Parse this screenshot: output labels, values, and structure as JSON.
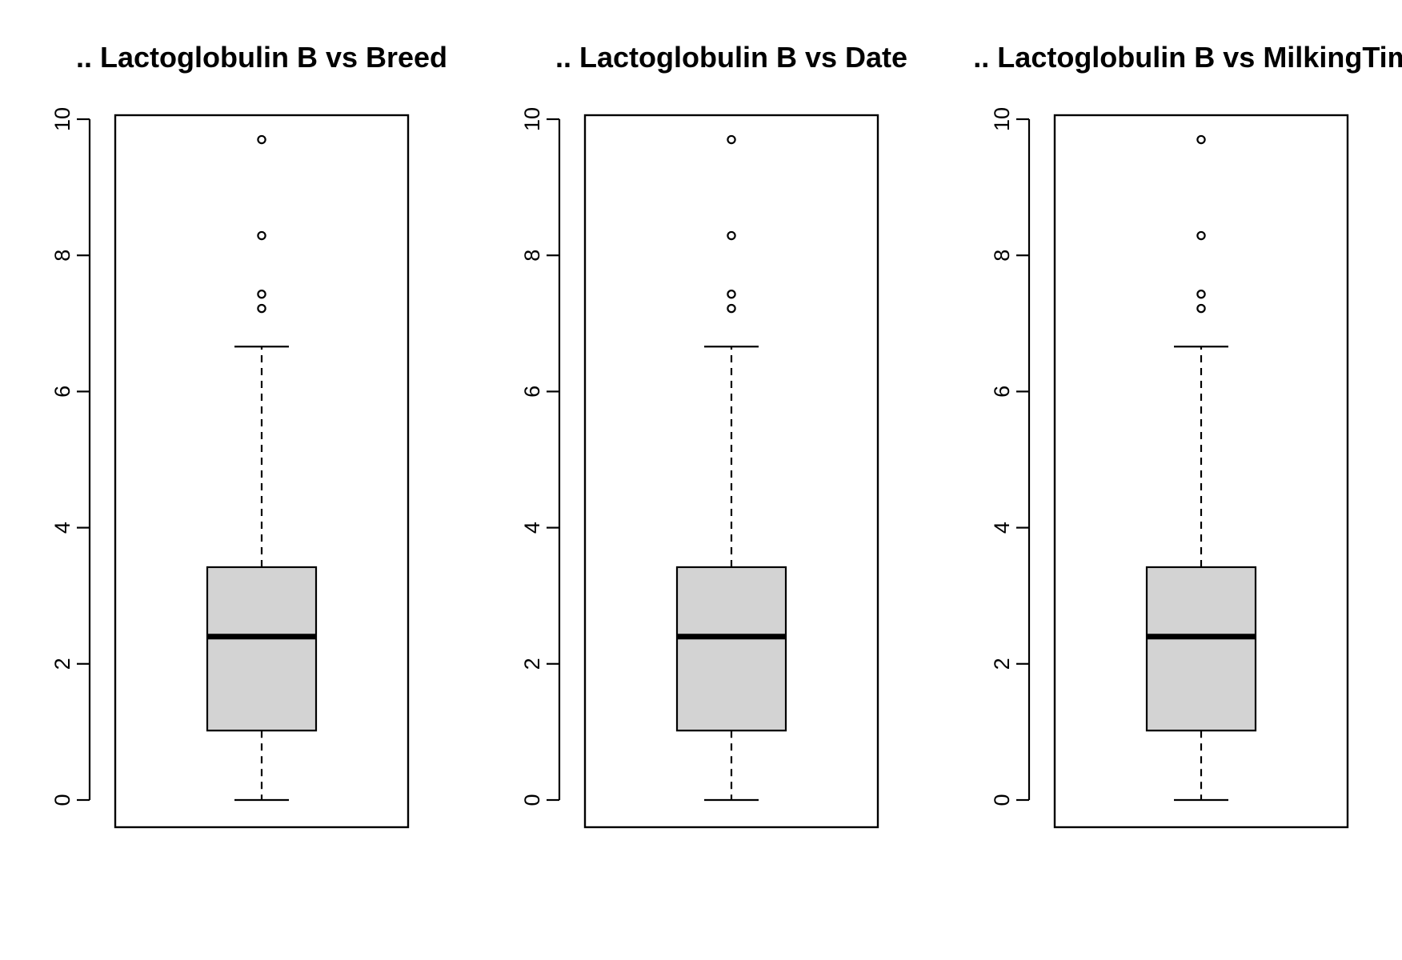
{
  "chart_data": [
    {
      "type": "box",
      "title": ".. Lactoglobulin B vs Breed",
      "xlabel": "",
      "ylabel": "",
      "ylim": [
        0,
        10
      ],
      "yticks": [
        0,
        2,
        4,
        6,
        8,
        10
      ],
      "grid": false,
      "box": {
        "min": 0,
        "q1": 1.02,
        "median": 2.4,
        "q3": 3.42,
        "max": 6.66,
        "outliers": [
          7.22,
          7.43,
          8.29,
          9.7
        ]
      },
      "colors": {
        "fill": "#d3d3d3",
        "stroke": "#000000"
      }
    },
    {
      "type": "box",
      "title": ".. Lactoglobulin B vs Date",
      "xlabel": "",
      "ylabel": "",
      "ylim": [
        0,
        10
      ],
      "yticks": [
        0,
        2,
        4,
        6,
        8,
        10
      ],
      "grid": false,
      "box": {
        "min": 0,
        "q1": 1.02,
        "median": 2.4,
        "q3": 3.42,
        "max": 6.66,
        "outliers": [
          7.22,
          7.43,
          8.29,
          9.7
        ]
      },
      "colors": {
        "fill": "#d3d3d3",
        "stroke": "#000000"
      }
    },
    {
      "type": "box",
      "title": ".. Lactoglobulin B vs MilkingTime",
      "xlabel": "",
      "ylabel": "",
      "ylim": [
        0,
        10
      ],
      "yticks": [
        0,
        2,
        4,
        6,
        8,
        10
      ],
      "grid": false,
      "box": {
        "min": 0,
        "q1": 1.02,
        "median": 2.4,
        "q3": 3.42,
        "max": 6.66,
        "outliers": [
          7.22,
          7.43,
          8.29,
          9.7
        ]
      },
      "colors": {
        "fill": "#d3d3d3",
        "stroke": "#000000"
      }
    }
  ]
}
